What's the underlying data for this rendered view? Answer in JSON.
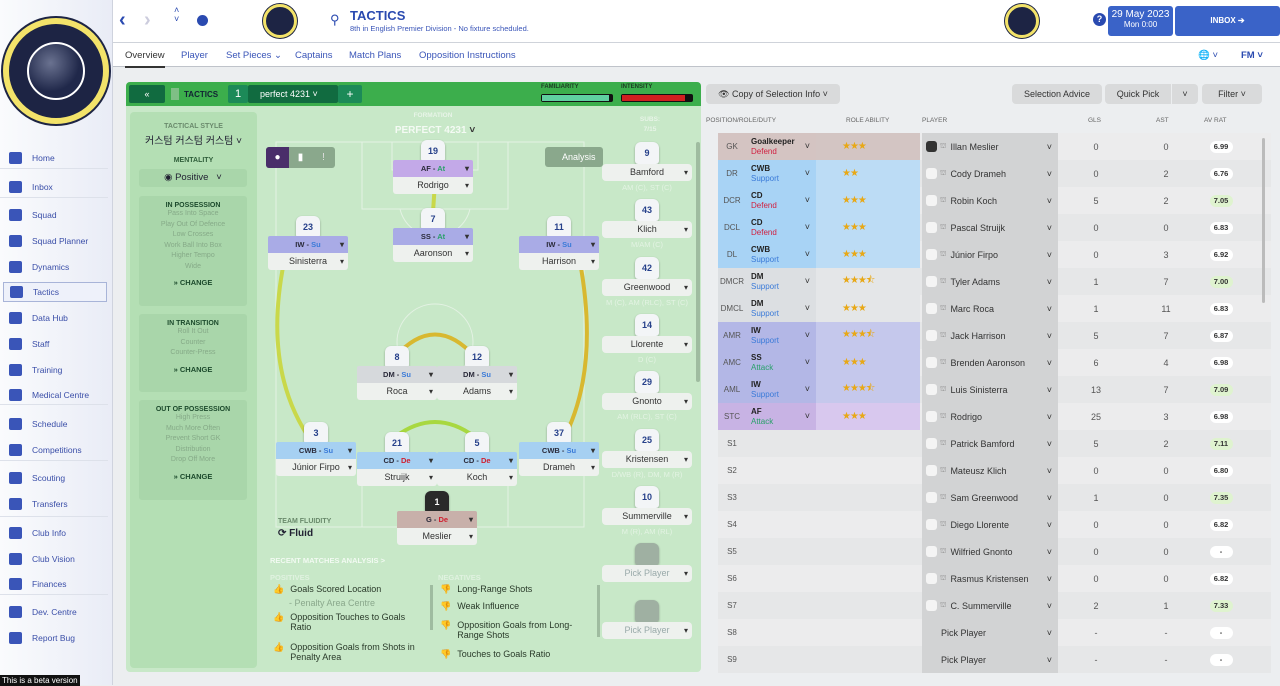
{
  "sidebar": {
    "items": [
      {
        "label": "Home",
        "icon": "home-icon"
      },
      {
        "label": "Inbox",
        "icon": "inbox-icon"
      },
      {
        "label": "Squad",
        "icon": "shirt-icon"
      },
      {
        "label": "Squad Planner",
        "icon": "clipboard-icon"
      },
      {
        "label": "Dynamics",
        "icon": "dynamics-icon"
      },
      {
        "label": "Tactics",
        "icon": "tactics-icon",
        "selected": true
      },
      {
        "label": "Data Hub",
        "icon": "data-hub-icon"
      },
      {
        "label": "Staff",
        "icon": "staff-icon"
      },
      {
        "label": "Training",
        "icon": "training-icon"
      },
      {
        "label": "Medical Centre",
        "icon": "medical-icon"
      },
      {
        "label": "Schedule",
        "icon": "calendar-icon"
      },
      {
        "label": "Competitions",
        "icon": "trophy-icon"
      },
      {
        "label": "Scouting",
        "icon": "search-icon"
      },
      {
        "label": "Transfers",
        "icon": "transfer-icon"
      },
      {
        "label": "Club Info",
        "icon": "shield-icon"
      },
      {
        "label": "Club Vision",
        "icon": "briefcase-icon"
      },
      {
        "label": "Finances",
        "icon": "money-icon"
      },
      {
        "label": "Dev. Centre",
        "icon": "chart-icon"
      },
      {
        "label": "Report Bug",
        "icon": "alert-icon"
      }
    ],
    "beta": "This is a beta version"
  },
  "header": {
    "title": "TACTICS",
    "subtitle": "8th in English Premier Division - No fixture scheduled.",
    "date": "29 May 2023",
    "time": "Mon 0:00",
    "inbox": "INBOX",
    "fm": "FM"
  },
  "tabs": [
    "Overview",
    "Player",
    "Set Pieces ⌄",
    "Captains",
    "Match Plans",
    "Opposition Instructions"
  ],
  "tactics_bar": {
    "label": "TACTICS",
    "slot": "1",
    "name": "perfect 4231",
    "familiarity_label": "FAMILIARITY",
    "intensity_label": "INTENSITY",
    "familiarity": 0.95,
    "intensity": 0.9,
    "accent": "#3cae4c"
  },
  "style": {
    "label": "TACTICAL STYLE",
    "value": "커스텀 커스텀 커스텀",
    "mentality_label": "MENTALITY",
    "mentality": "Positive",
    "in_possession": {
      "title": "IN POSSESSION",
      "items": [
        "Pass Into Space",
        "Play Out Of Defence",
        "Low Crosses",
        "Work Ball Into Box",
        "Higher Tempo",
        "Wide"
      ]
    },
    "in_transition": {
      "title": "IN TRANSITION",
      "items": [
        "Roll It Out",
        "Counter",
        "Counter-Press"
      ]
    },
    "out_of_possession": {
      "title": "OUT OF POSSESSION",
      "items": [
        "High Press",
        "Much More Often",
        "Prevent Short GK",
        "Distribution",
        "Drop Off More"
      ]
    },
    "change": "CHANGE"
  },
  "pitch": {
    "formation_label": "FORMATION",
    "formation": "PERFECT 4231",
    "subs_label": "SUBS:",
    "subs_count": "7/15",
    "analysis": "Analysis",
    "fluidity_label": "TEAM FLUIDITY",
    "fluidity": "Fluid",
    "players": [
      {
        "num": "19",
        "role": "AF",
        "duty": "At",
        "name": "Rodrigo",
        "line": "st"
      },
      {
        "num": "7",
        "role": "SS",
        "duty": "At",
        "name": "Aaronson",
        "line": "am"
      },
      {
        "num": "23",
        "role": "IW",
        "duty": "Su",
        "name": "Sinisterra",
        "line": "am"
      },
      {
        "num": "11",
        "role": "IW",
        "duty": "Su",
        "name": "Harrison",
        "line": "am"
      },
      {
        "num": "8",
        "role": "DM",
        "duty": "Su",
        "name": "Roca",
        "line": "dm"
      },
      {
        "num": "12",
        "role": "DM",
        "duty": "Su",
        "name": "Adams",
        "line": "dm"
      },
      {
        "num": "3",
        "role": "CWB",
        "duty": "Su",
        "name": "Júnior Firpo",
        "line": "d"
      },
      {
        "num": "21",
        "role": "CD",
        "duty": "De",
        "name": "Struijk",
        "line": "d"
      },
      {
        "num": "5",
        "role": "CD",
        "duty": "De",
        "name": "Koch",
        "line": "d"
      },
      {
        "num": "37",
        "role": "CWB",
        "duty": "Su",
        "name": "Drameh",
        "line": "d"
      },
      {
        "num": "1",
        "role": "G",
        "duty": "De",
        "name": "Meslier",
        "line": "gk"
      }
    ],
    "subs": [
      {
        "num": "9",
        "name": "Bamford",
        "pos": "AM (C), ST (C)"
      },
      {
        "num": "43",
        "name": "Klich",
        "pos": "M/AM (C)"
      },
      {
        "num": "42",
        "name": "Greenwood",
        "pos": "M (C), AM (RLC), ST (C)"
      },
      {
        "num": "14",
        "name": "Llorente",
        "pos": "D (C)"
      },
      {
        "num": "29",
        "name": "Gnonto",
        "pos": "AM (RLC), ST (C)"
      },
      {
        "num": "25",
        "name": "Kristensen",
        "pos": "D/WB (R), DM, M (R)"
      },
      {
        "num": "10",
        "name": "Summerville",
        "pos": "M (R), AM (RL)"
      },
      {
        "num": "",
        "name": "Pick Player",
        "pos": ""
      },
      {
        "num": "",
        "name": "Pick Player",
        "pos": ""
      }
    ]
  },
  "analysis": {
    "title": "RECENT MATCHES ANALYSIS >",
    "positives_label": "POSITIVES",
    "negatives_label": "NEGATIVES",
    "positives": [
      "Goals Scored Location",
      "- Penalty Area Centre",
      "Opposition Touches to Goals Ratio",
      "Opposition Goals from Shots in Penalty Area"
    ],
    "negatives": [
      "Long-Range Shots",
      "Weak Influence",
      "Opposition Goals from Long-Range Shots",
      "Touches to Goals Ratio"
    ]
  },
  "selection": {
    "copy_label": "Copy of Selection Info",
    "advice": "Selection Advice",
    "quick_pick": "Quick Pick",
    "filter": "Filter",
    "columns": [
      "POSITION/ROLE/DUTY",
      "ROLE ABILITY",
      "PLAYER",
      "GLS",
      "AST",
      "AV RAT"
    ],
    "rows": [
      {
        "pos": "GK",
        "role": "Goalkeeper",
        "duty": "Defend",
        "stars": 3,
        "num": "1",
        "player": "Illan Meslier",
        "gls": "0",
        "ast": "0",
        "rat": "6.99",
        "band": "gk"
      },
      {
        "pos": "DR",
        "role": "CWB",
        "duty": "Support",
        "stars": 2,
        "num": "37",
        "player": "Cody Drameh",
        "gls": "0",
        "ast": "2",
        "rat": "6.76",
        "band": "d"
      },
      {
        "pos": "DCR",
        "role": "CD",
        "duty": "Defend",
        "stars": 3,
        "num": "5",
        "player": "Robin Koch",
        "gls": "5",
        "ast": "2",
        "rat": "7.05",
        "band": "d",
        "good": true
      },
      {
        "pos": "DCL",
        "role": "CD",
        "duty": "Defend",
        "stars": 3,
        "num": "21",
        "player": "Pascal Struijk",
        "gls": "0",
        "ast": "0",
        "rat": "6.83",
        "band": "d"
      },
      {
        "pos": "DL",
        "role": "CWB",
        "duty": "Support",
        "stars": 3,
        "num": "3",
        "player": "Júnior Firpo",
        "gls": "0",
        "ast": "3",
        "rat": "6.92",
        "band": "d"
      },
      {
        "pos": "DMCR",
        "role": "DM",
        "duty": "Support",
        "stars": 3.5,
        "num": "12",
        "player": "Tyler Adams",
        "gls": "1",
        "ast": "7",
        "rat": "7.00",
        "band": "dm",
        "good": true
      },
      {
        "pos": "DMCL",
        "role": "DM",
        "duty": "Support",
        "stars": 3,
        "num": "8",
        "player": "Marc Roca",
        "gls": "1",
        "ast": "11",
        "rat": "6.83",
        "band": "dm"
      },
      {
        "pos": "AMR",
        "role": "IW",
        "duty": "Support",
        "stars": 3.5,
        "num": "11",
        "player": "Jack Harrison",
        "gls": "5",
        "ast": "7",
        "rat": "6.87",
        "band": "am"
      },
      {
        "pos": "AMC",
        "role": "SS",
        "duty": "Attack",
        "stars": 3,
        "num": "7",
        "player": "Brenden Aaronson",
        "gls": "6",
        "ast": "4",
        "rat": "6.98",
        "band": "am"
      },
      {
        "pos": "AML",
        "role": "IW",
        "duty": "Support",
        "stars": 3.5,
        "num": "23",
        "player": "Luis Sinisterra",
        "gls": "13",
        "ast": "7",
        "rat": "7.09",
        "band": "am",
        "good": true
      },
      {
        "pos": "STC",
        "role": "AF",
        "duty": "Attack",
        "stars": 3,
        "num": "19",
        "player": "Rodrigo",
        "gls": "25",
        "ast": "3",
        "rat": "6.98",
        "band": "st"
      },
      {
        "pos": "S1",
        "role": "",
        "duty": "",
        "stars": 0,
        "num": "9",
        "player": "Patrick Bamford",
        "gls": "5",
        "ast": "2",
        "rat": "7.11",
        "band": "s",
        "good": true
      },
      {
        "pos": "S2",
        "role": "",
        "duty": "",
        "stars": 0,
        "num": "43",
        "player": "Mateusz Klich",
        "gls": "0",
        "ast": "0",
        "rat": "6.80",
        "band": "s"
      },
      {
        "pos": "S3",
        "role": "",
        "duty": "",
        "stars": 0,
        "num": "42",
        "player": "Sam Greenwood",
        "gls": "1",
        "ast": "0",
        "rat": "7.35",
        "band": "s",
        "good": true
      },
      {
        "pos": "S4",
        "role": "",
        "duty": "",
        "stars": 0,
        "num": "14",
        "player": "Diego Llorente",
        "gls": "0",
        "ast": "0",
        "rat": "6.82",
        "band": "s"
      },
      {
        "pos": "S5",
        "role": "",
        "duty": "",
        "stars": 0,
        "num": "29",
        "player": "Wilfried Gnonto",
        "gls": "0",
        "ast": "0",
        "rat": "-",
        "band": "s"
      },
      {
        "pos": "S6",
        "role": "",
        "duty": "",
        "stars": 0,
        "num": "25",
        "player": "Rasmus Kristensen",
        "gls": "0",
        "ast": "0",
        "rat": "6.82",
        "band": "s"
      },
      {
        "pos": "S7",
        "role": "",
        "duty": "",
        "stars": 0,
        "num": "10",
        "player": "C. Summerville",
        "gls": "2",
        "ast": "1",
        "rat": "7.33",
        "band": "s",
        "good": true
      },
      {
        "pos": "S8",
        "role": "",
        "duty": "",
        "stars": 0,
        "num": "",
        "player": "Pick Player",
        "gls": "-",
        "ast": "-",
        "rat": "-",
        "band": "s"
      },
      {
        "pos": "S9",
        "role": "",
        "duty": "",
        "stars": 0,
        "num": "",
        "player": "Pick Player",
        "gls": "-",
        "ast": "-",
        "rat": "-",
        "band": "s"
      }
    ]
  }
}
